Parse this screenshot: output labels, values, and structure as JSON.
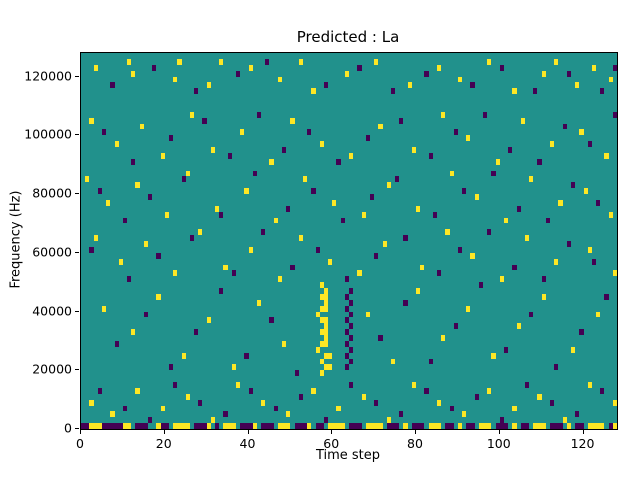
{
  "figure": {
    "title": "Predicted : La",
    "xlabel": "Time step",
    "ylabel": "Frequency (Hz)"
  },
  "chart_data": {
    "type": "heatmap",
    "title": "Predicted : La",
    "xlabel": "Time step",
    "ylabel": "Frequency (Hz)",
    "x_range": [
      0,
      128
    ],
    "y_range": [
      0,
      128000
    ],
    "x_ticks": [
      0,
      20,
      40,
      60,
      80,
      100,
      120
    ],
    "y_ticks": [
      0,
      20000,
      40000,
      60000,
      80000,
      100000,
      120000
    ],
    "cell_width_steps": 1,
    "cell_height_hz": 2000,
    "legend": "none",
    "grid": false,
    "colors": {
      "background": "#21918c",
      "y": "#fde725",
      "p": "#440154"
    },
    "color_meaning": {
      "background": "mid value",
      "y": "high value",
      "p": "low value"
    },
    "cells": [
      [
        0,
        0,
        "p",
        2
      ],
      [
        2,
        0,
        "y",
        3
      ],
      [
        5,
        0,
        "p",
        3
      ],
      [
        8,
        0,
        "p",
        2
      ],
      [
        10,
        0,
        "y",
        2
      ],
      [
        13,
        0,
        "p",
        3
      ],
      [
        18,
        0,
        "y",
        1
      ],
      [
        19,
        0,
        "p",
        2
      ],
      [
        22,
        0,
        "y",
        4
      ],
      [
        27,
        0,
        "p",
        3
      ],
      [
        30,
        0,
        "y",
        1
      ],
      [
        32,
        0,
        "p",
        1
      ],
      [
        34,
        0,
        "y",
        3
      ],
      [
        38,
        0,
        "p",
        3
      ],
      [
        41,
        0,
        "y",
        1
      ],
      [
        43,
        0,
        "p",
        3
      ],
      [
        47,
        0,
        "y",
        3
      ],
      [
        51,
        0,
        "p",
        3
      ],
      [
        54,
        0,
        "y",
        1
      ],
      [
        56,
        0,
        "p",
        2
      ],
      [
        59,
        0,
        "y",
        4
      ],
      [
        64,
        0,
        "p",
        3
      ],
      [
        68,
        0,
        "y",
        4
      ],
      [
        73,
        0,
        "p",
        3
      ],
      [
        77,
        0,
        "y",
        1
      ],
      [
        79,
        0,
        "p",
        3
      ],
      [
        83,
        0,
        "y",
        3
      ],
      [
        87,
        0,
        "p",
        2
      ],
      [
        90,
        0,
        "y",
        1
      ],
      [
        92,
        0,
        "p",
        2
      ],
      [
        95,
        0,
        "y",
        3
      ],
      [
        99,
        0,
        "p",
        3
      ],
      [
        103,
        0,
        "y",
        1
      ],
      [
        105,
        0,
        "p",
        2
      ],
      [
        108,
        0,
        "y",
        3
      ],
      [
        112,
        0,
        "p",
        3
      ],
      [
        116,
        0,
        "y",
        1
      ],
      [
        118,
        0,
        "p",
        2
      ],
      [
        121,
        0,
        "y",
        4
      ],
      [
        126,
        0,
        "p",
        1
      ],
      [
        127,
        0,
        "y",
        1
      ],
      [
        2,
        4,
        "y"
      ],
      [
        7,
        2,
        "y"
      ],
      [
        13,
        6,
        "y"
      ],
      [
        19,
        3,
        "y"
      ],
      [
        25,
        5,
        "y"
      ],
      [
        31,
        1,
        "y"
      ],
      [
        37,
        7,
        "y"
      ],
      [
        43,
        4,
        "y"
      ],
      [
        49,
        2,
        "y"
      ],
      [
        55,
        6,
        "y"
      ],
      [
        61,
        3,
        "y"
      ],
      [
        67,
        5,
        "y"
      ],
      [
        73,
        1,
        "y"
      ],
      [
        79,
        7,
        "y"
      ],
      [
        85,
        4,
        "y"
      ],
      [
        91,
        2,
        "y"
      ],
      [
        97,
        6,
        "y"
      ],
      [
        103,
        3,
        "y"
      ],
      [
        109,
        5,
        "y"
      ],
      [
        115,
        1,
        "y"
      ],
      [
        121,
        7,
        "y"
      ],
      [
        127,
        4,
        "y"
      ],
      [
        4,
        6,
        "p"
      ],
      [
        10,
        3,
        "p"
      ],
      [
        16,
        1,
        "p"
      ],
      [
        22,
        7,
        "p"
      ],
      [
        28,
        4,
        "p"
      ],
      [
        34,
        2,
        "p"
      ],
      [
        40,
        6,
        "p"
      ],
      [
        46,
        3,
        "p"
      ],
      [
        52,
        5,
        "p"
      ],
      [
        58,
        1,
        "p"
      ],
      [
        64,
        7,
        "p"
      ],
      [
        70,
        4,
        "p"
      ],
      [
        76,
        2,
        "p"
      ],
      [
        82,
        6,
        "p"
      ],
      [
        88,
        3,
        "p"
      ],
      [
        94,
        5,
        "p"
      ],
      [
        100,
        1,
        "p"
      ],
      [
        106,
        7,
        "p"
      ],
      [
        112,
        4,
        "p"
      ],
      [
        118,
        2,
        "p"
      ],
      [
        124,
        6,
        "p"
      ],
      [
        57,
        9,
        "y"
      ],
      [
        58,
        10,
        "y",
        2
      ],
      [
        57,
        11,
        "y"
      ],
      [
        58,
        12,
        "y",
        2
      ],
      [
        56,
        13,
        "y"
      ],
      [
        57,
        14,
        "y",
        2
      ],
      [
        58,
        15,
        "y"
      ],
      [
        57,
        16,
        "y",
        2
      ],
      [
        58,
        17,
        "y"
      ],
      [
        57,
        18,
        "y",
        2
      ],
      [
        56,
        19,
        "y"
      ],
      [
        57,
        20,
        "y",
        2
      ],
      [
        58,
        21,
        "y"
      ],
      [
        57,
        22,
        "y",
        2
      ],
      [
        58,
        23,
        "y"
      ],
      [
        57,
        24,
        "y"
      ],
      [
        63,
        10,
        "p"
      ],
      [
        64,
        11,
        "p"
      ],
      [
        63,
        12,
        "p"
      ],
      [
        64,
        13,
        "p"
      ],
      [
        63,
        14,
        "p"
      ],
      [
        64,
        15,
        "p"
      ],
      [
        63,
        16,
        "p"
      ],
      [
        64,
        17,
        "p"
      ],
      [
        63,
        18,
        "p"
      ],
      [
        64,
        19,
        "p"
      ],
      [
        63,
        20,
        "p"
      ],
      [
        64,
        21,
        "p"
      ],
      [
        63,
        22,
        "p"
      ],
      [
        64,
        23,
        "p"
      ],
      [
        5,
        20,
        "y"
      ],
      [
        12,
        16,
        "y"
      ],
      [
        18,
        22,
        "y"
      ],
      [
        24,
        12,
        "y"
      ],
      [
        30,
        18,
        "y"
      ],
      [
        36,
        10,
        "y"
      ],
      [
        42,
        21,
        "y"
      ],
      [
        48,
        14,
        "y"
      ],
      [
        68,
        19,
        "y"
      ],
      [
        74,
        11,
        "y"
      ],
      [
        80,
        23,
        "y"
      ],
      [
        86,
        15,
        "y"
      ],
      [
        92,
        20,
        "y"
      ],
      [
        98,
        12,
        "y"
      ],
      [
        104,
        17,
        "y"
      ],
      [
        110,
        22,
        "y"
      ],
      [
        117,
        13,
        "y"
      ],
      [
        123,
        19,
        "y"
      ],
      [
        8,
        14,
        "p"
      ],
      [
        15,
        19,
        "p"
      ],
      [
        21,
        10,
        "p"
      ],
      [
        27,
        16,
        "p"
      ],
      [
        33,
        23,
        "p"
      ],
      [
        39,
        12,
        "p"
      ],
      [
        45,
        18,
        "p"
      ],
      [
        51,
        9,
        "p"
      ],
      [
        71,
        15,
        "p"
      ],
      [
        77,
        21,
        "p"
      ],
      [
        83,
        11,
        "p"
      ],
      [
        89,
        17,
        "p"
      ],
      [
        95,
        24,
        "p"
      ],
      [
        101,
        13,
        "p"
      ],
      [
        107,
        19,
        "p"
      ],
      [
        113,
        10,
        "p"
      ],
      [
        119,
        16,
        "p"
      ],
      [
        125,
        22,
        "p"
      ],
      [
        3,
        32,
        "y"
      ],
      [
        9,
        28,
        "y"
      ],
      [
        15,
        31,
        "y"
      ],
      [
        22,
        26,
        "y"
      ],
      [
        28,
        33,
        "y"
      ],
      [
        34,
        27,
        "y"
      ],
      [
        40,
        30,
        "y"
      ],
      [
        47,
        25,
        "y"
      ],
      [
        52,
        32,
        "y"
      ],
      [
        59,
        28,
        "y"
      ],
      [
        66,
        26,
        "y"
      ],
      [
        72,
        31,
        "y"
      ],
      [
        81,
        27,
        "y"
      ],
      [
        87,
        33,
        "y"
      ],
      [
        93,
        29,
        "y"
      ],
      [
        100,
        25,
        "y"
      ],
      [
        106,
        32,
        "y"
      ],
      [
        113,
        28,
        "y"
      ],
      [
        121,
        30,
        "y"
      ],
      [
        127,
        26,
        "y"
      ],
      [
        2,
        30,
        "p"
      ],
      [
        11,
        25,
        "p"
      ],
      [
        18,
        29,
        "p"
      ],
      [
        26,
        32,
        "p"
      ],
      [
        36,
        26,
        "p"
      ],
      [
        43,
        33,
        "p"
      ],
      [
        50,
        27,
        "p"
      ],
      [
        56,
        30,
        "p"
      ],
      [
        63,
        25,
        "p"
      ],
      [
        70,
        29,
        "p"
      ],
      [
        77,
        32,
        "p"
      ],
      [
        85,
        26,
        "p"
      ],
      [
        90,
        30,
        "p"
      ],
      [
        97,
        33,
        "p"
      ],
      [
        103,
        27,
        "p"
      ],
      [
        110,
        25,
        "p"
      ],
      [
        116,
        31,
        "p"
      ],
      [
        122,
        28,
        "p"
      ],
      [
        1,
        42,
        "y"
      ],
      [
        6,
        38,
        "y"
      ],
      [
        13,
        41,
        "y"
      ],
      [
        20,
        36,
        "y"
      ],
      [
        25,
        43,
        "y"
      ],
      [
        32,
        37,
        "y"
      ],
      [
        39,
        40,
        "y"
      ],
      [
        46,
        35,
        "y"
      ],
      [
        53,
        42,
        "y"
      ],
      [
        60,
        38,
        "y"
      ],
      [
        67,
        36,
        "y"
      ],
      [
        73,
        41,
        "y"
      ],
      [
        80,
        37,
        "y"
      ],
      [
        88,
        43,
        "y"
      ],
      [
        94,
        39,
        "y"
      ],
      [
        101,
        35,
        "y"
      ],
      [
        107,
        42,
        "y"
      ],
      [
        114,
        38,
        "y"
      ],
      [
        120,
        40,
        "y"
      ],
      [
        126,
        36,
        "y"
      ],
      [
        4,
        40,
        "p"
      ],
      [
        10,
        35,
        "p"
      ],
      [
        16,
        39,
        "p"
      ],
      [
        24,
        42,
        "p"
      ],
      [
        33,
        36,
        "p"
      ],
      [
        41,
        43,
        "p"
      ],
      [
        49,
        37,
        "p"
      ],
      [
        55,
        40,
        "p"
      ],
      [
        62,
        35,
        "p"
      ],
      [
        69,
        39,
        "p"
      ],
      [
        75,
        42,
        "p"
      ],
      [
        84,
        36,
        "p"
      ],
      [
        91,
        40,
        "p"
      ],
      [
        98,
        43,
        "p"
      ],
      [
        104,
        37,
        "p"
      ],
      [
        111,
        35,
        "p"
      ],
      [
        117,
        41,
        "p"
      ],
      [
        123,
        38,
        "p"
      ],
      [
        2,
        52,
        "y"
      ],
      [
        8,
        48,
        "y"
      ],
      [
        14,
        51,
        "y"
      ],
      [
        19,
        46,
        "y"
      ],
      [
        26,
        53,
        "y"
      ],
      [
        31,
        47,
        "y"
      ],
      [
        38,
        50,
        "y"
      ],
      [
        45,
        45,
        "y"
      ],
      [
        50,
        52,
        "y"
      ],
      [
        57,
        48,
        "y"
      ],
      [
        64,
        46,
        "y"
      ],
      [
        71,
        51,
        "y"
      ],
      [
        79,
        47,
        "y"
      ],
      [
        86,
        53,
        "y"
      ],
      [
        92,
        49,
        "y"
      ],
      [
        99,
        45,
        "y"
      ],
      [
        105,
        52,
        "y"
      ],
      [
        112,
        48,
        "y"
      ],
      [
        119,
        50,
        "y"
      ],
      [
        125,
        46,
        "y"
      ],
      [
        5,
        50,
        "p"
      ],
      [
        12,
        45,
        "p"
      ],
      [
        21,
        49,
        "p"
      ],
      [
        29,
        52,
        "p"
      ],
      [
        35,
        46,
        "p"
      ],
      [
        42,
        53,
        "p"
      ],
      [
        48,
        47,
        "p"
      ],
      [
        54,
        50,
        "p"
      ],
      [
        61,
        45,
        "p"
      ],
      [
        68,
        49,
        "p"
      ],
      [
        76,
        52,
        "p"
      ],
      [
        83,
        46,
        "p"
      ],
      [
        89,
        50,
        "p"
      ],
      [
        96,
        53,
        "p"
      ],
      [
        102,
        47,
        "p"
      ],
      [
        109,
        45,
        "p"
      ],
      [
        115,
        51,
        "p"
      ],
      [
        121,
        48,
        "p"
      ],
      [
        127,
        53,
        "p"
      ],
      [
        3,
        61,
        "y"
      ],
      [
        11,
        62,
        "y"
      ],
      [
        12,
        60,
        "y"
      ],
      [
        22,
        59,
        "y"
      ],
      [
        23,
        62,
        "y"
      ],
      [
        30,
        58,
        "y"
      ],
      [
        33,
        62,
        "y"
      ],
      [
        40,
        61,
        "y"
      ],
      [
        47,
        59,
        "y"
      ],
      [
        52,
        62,
        "y"
      ],
      [
        55,
        57,
        "y"
      ],
      [
        63,
        60,
        "y"
      ],
      [
        70,
        62,
        "y"
      ],
      [
        78,
        58,
        "y"
      ],
      [
        85,
        61,
        "y"
      ],
      [
        90,
        59,
        "y"
      ],
      [
        97,
        62,
        "y"
      ],
      [
        103,
        57,
        "y"
      ],
      [
        110,
        60,
        "y"
      ],
      [
        113,
        62,
        "y"
      ],
      [
        118,
        58,
        "y"
      ],
      [
        122,
        61,
        "y"
      ],
      [
        126,
        59,
        "y"
      ],
      [
        7,
        58,
        "p"
      ],
      [
        17,
        61,
        "p"
      ],
      [
        27,
        57,
        "p"
      ],
      [
        37,
        60,
        "p"
      ],
      [
        44,
        62,
        "p"
      ],
      [
        58,
        58,
        "p"
      ],
      [
        66,
        61,
        "p"
      ],
      [
        74,
        57,
        "p"
      ],
      [
        82,
        60,
        "p"
      ],
      [
        93,
        58,
        "p"
      ],
      [
        100,
        61,
        "p"
      ],
      [
        108,
        57,
        "p"
      ],
      [
        116,
        60,
        "p"
      ],
      [
        124,
        57,
        "p"
      ],
      [
        127,
        61,
        "p"
      ]
    ]
  }
}
